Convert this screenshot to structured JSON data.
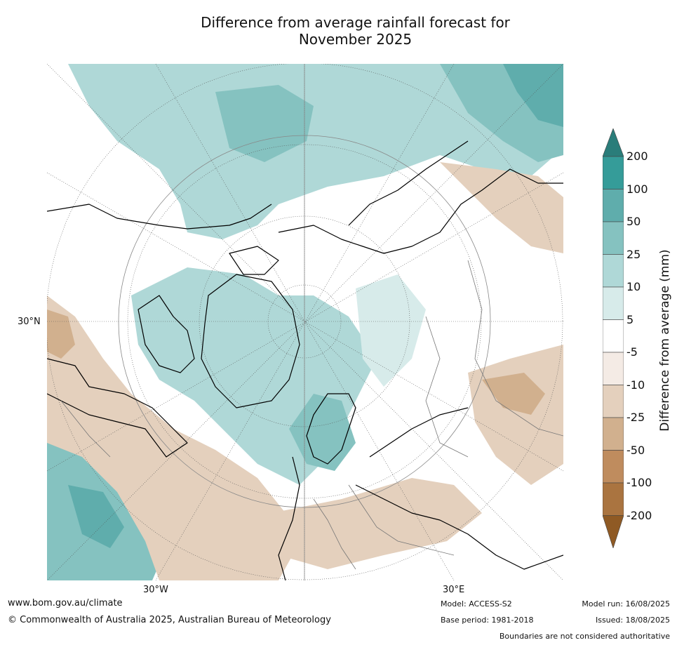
{
  "title_line1": "Difference from average rainfall forecast for",
  "title_line2": "November 2025",
  "map_labels": {
    "lat": "30°N",
    "lon_w": "30°W",
    "lon_e": "30°E"
  },
  "colorbar": {
    "title": "Difference from average (mm)",
    "ticks": [
      "200",
      "100",
      "50",
      "25",
      "10",
      "5",
      "-5",
      "-10",
      "-25",
      "-50",
      "-100",
      "-200"
    ],
    "colors": [
      "#2a7d7a",
      "#359c99",
      "#5fadac",
      "#85c2c0",
      "#afd8d7",
      "#d7ebea",
      "#ffffff",
      "#f4ebe5",
      "#e4d0bd",
      "#d1b08e",
      "#bf8c5e",
      "#aa7440",
      "#8f5a24"
    ]
  },
  "footer": {
    "url": "www.bom.gov.au/climate",
    "copyright": "© Commonwealth of Australia 2025, Australian Bureau of Meteorology",
    "model": "Model: ACCESS-S2",
    "base_period": "Base period: 1981-2018",
    "model_run": "Model run: 16/08/2025",
    "issued": "Issued: 18/08/2025",
    "boundaries": "Boundaries are not considered authoritative"
  }
}
